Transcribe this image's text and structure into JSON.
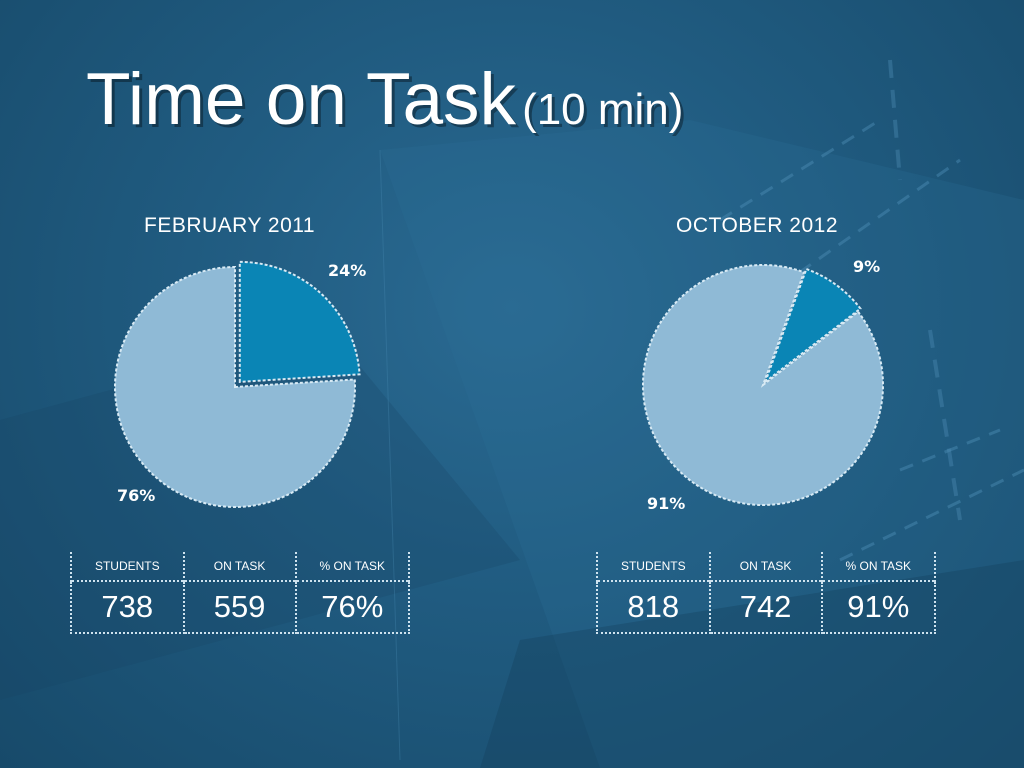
{
  "title": {
    "main": "Time on Task",
    "sub": "(10 min)"
  },
  "colors": {
    "background": "#205b80",
    "slice_major": "#8fbad6",
    "slice_minor": "#0a85b5",
    "outline": "#d8eaf4"
  },
  "chart_data": [
    {
      "type": "pie",
      "title": "FEBRUARY 2011",
      "slices": [
        {
          "value": 24,
          "label": "24%",
          "color": "#0a85b5"
        },
        {
          "value": 76,
          "label": "76%",
          "color": "#8fbad6"
        }
      ]
    },
    {
      "type": "pie",
      "title": "OCTOBER 2012",
      "slices": [
        {
          "value": 9,
          "label": "9%",
          "color": "#0a85b5"
        },
        {
          "value": 91,
          "label": "91%",
          "color": "#8fbad6"
        }
      ]
    }
  ],
  "tables": [
    {
      "headers": [
        "STUDENTS",
        "ON TASK",
        "% ON TASK"
      ],
      "values": [
        "738",
        "559",
        "76%"
      ]
    },
    {
      "headers": [
        "STUDENTS",
        "ON TASK",
        "% ON TASK"
      ],
      "values": [
        "818",
        "742",
        "91%"
      ]
    }
  ]
}
